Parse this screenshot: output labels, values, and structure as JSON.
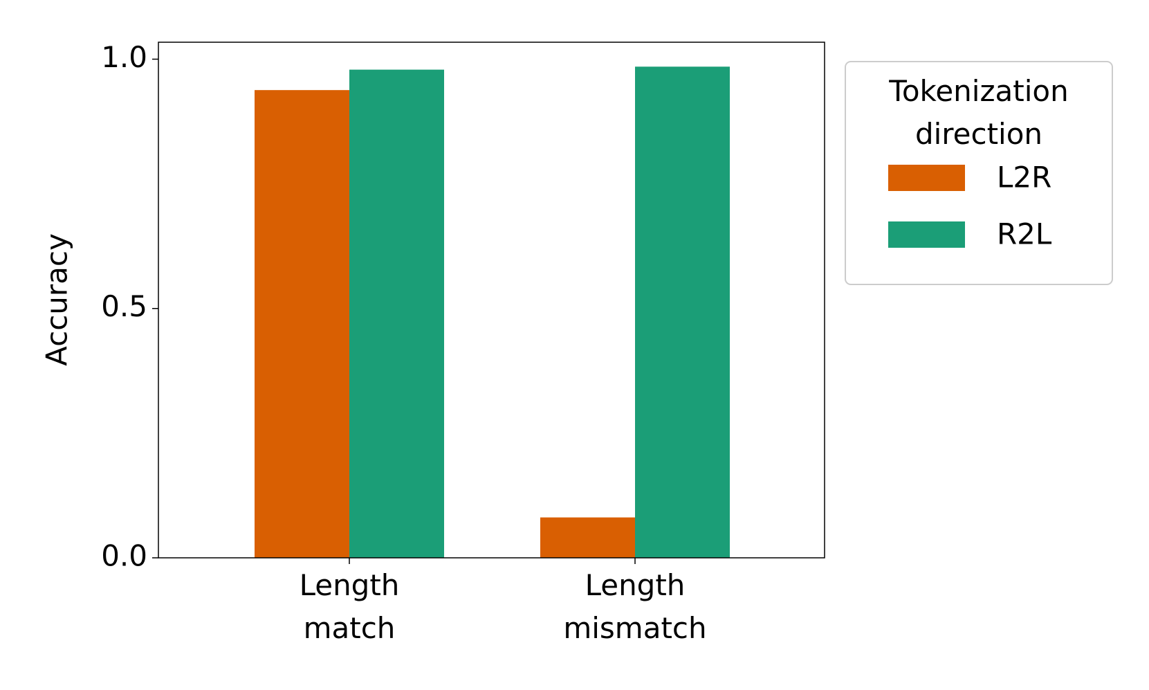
{
  "chart_data": {
    "type": "bar",
    "ylabel": "Accuracy",
    "categories": [
      "Length\nmatch",
      "Length\nmismatch"
    ],
    "series": [
      {
        "name": "L2R",
        "color": "#d95f02",
        "values": [
          0.938,
          0.081
        ]
      },
      {
        "name": "R2L",
        "color": "#1b9e77",
        "values": [
          0.979,
          0.985
        ]
      }
    ],
    "ylim": [
      0,
      1.034
    ],
    "yticks": [
      0.0,
      0.5,
      1.0
    ],
    "legend_title": "Tokenization\ndirection",
    "legend": "outside upper right"
  }
}
